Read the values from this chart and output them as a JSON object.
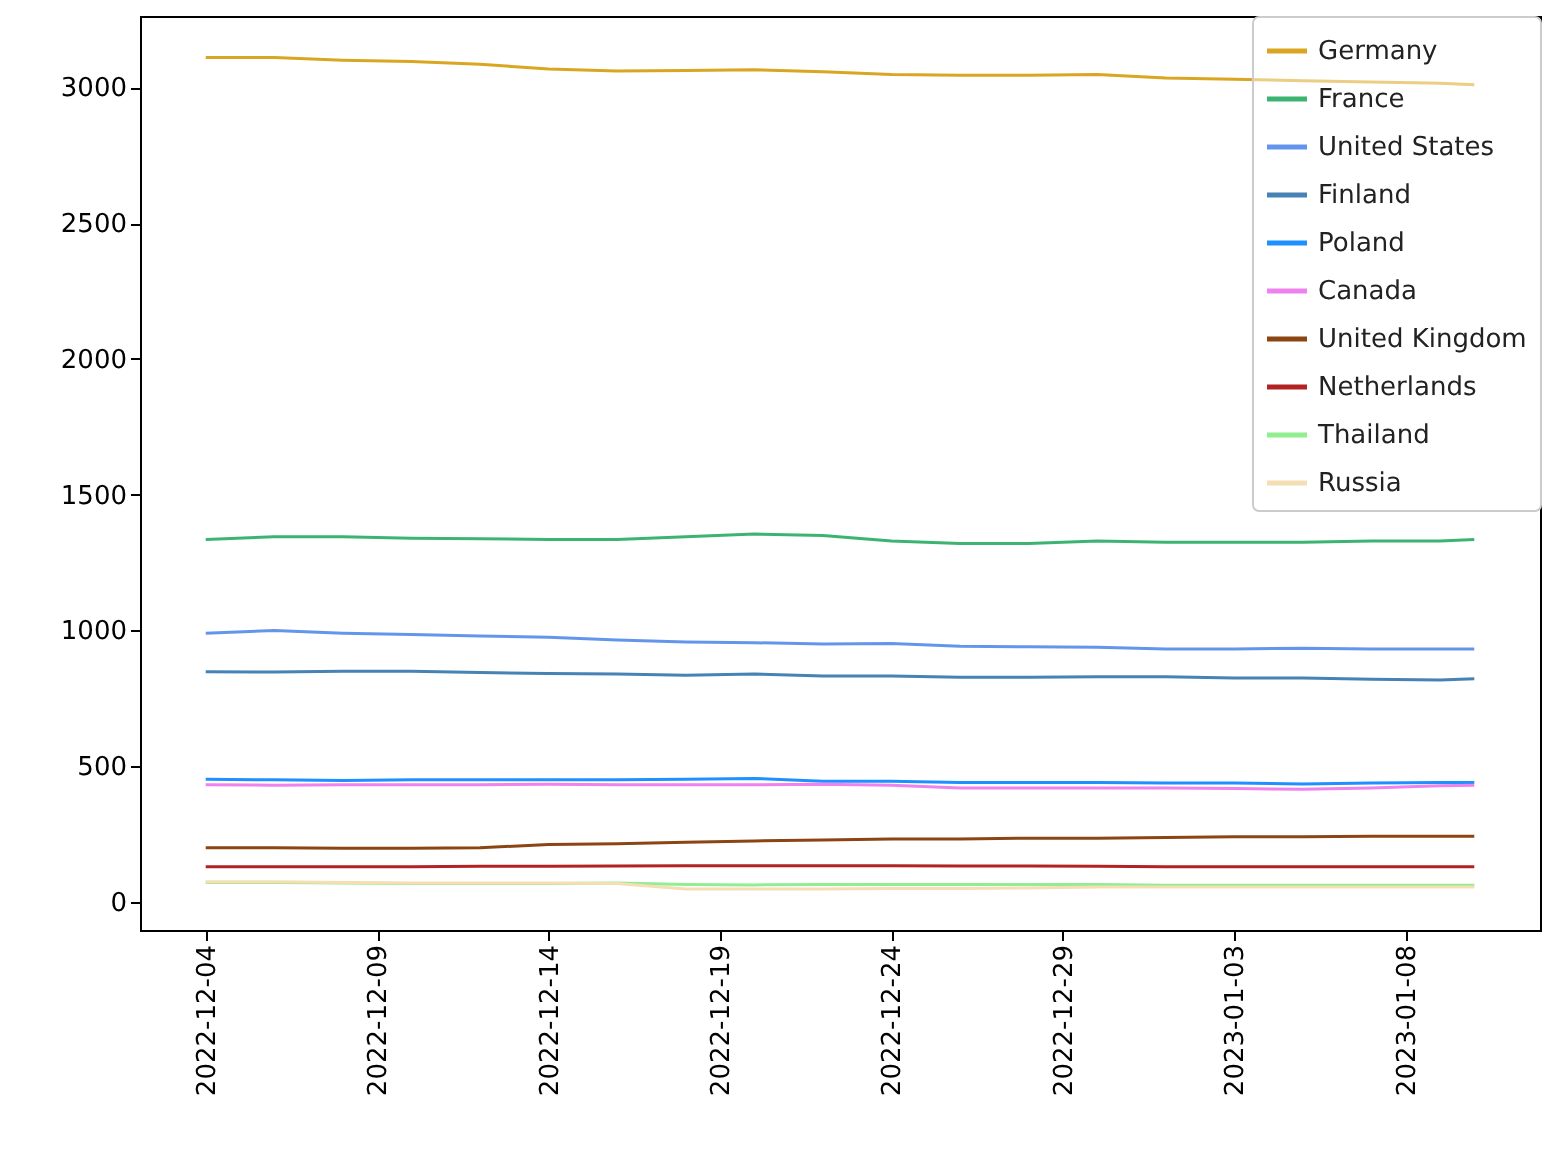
{
  "chart_data": {
    "type": "line",
    "x": [
      "2022-12-04",
      "2022-12-06",
      "2022-12-08",
      "2022-12-10",
      "2022-12-12",
      "2022-12-14",
      "2022-12-16",
      "2022-12-18",
      "2022-12-20",
      "2022-12-22",
      "2022-12-24",
      "2022-12-26",
      "2022-12-28",
      "2022-12-30",
      "2023-01-01",
      "2023-01-03",
      "2023-01-05",
      "2023-01-07",
      "2023-01-09",
      "2023-01-10"
    ],
    "series": [
      {
        "name": "Germany",
        "color": "#daa520",
        "values": [
          3110,
          3110,
          3100,
          3095,
          3085,
          3068,
          3060,
          3062,
          3065,
          3058,
          3048,
          3045,
          3045,
          3048,
          3035,
          3030,
          3025,
          3020,
          3015,
          3010
        ]
      },
      {
        "name": "France",
        "color": "#3cb371",
        "values": [
          1335,
          1345,
          1345,
          1340,
          1338,
          1335,
          1335,
          1345,
          1355,
          1350,
          1330,
          1320,
          1320,
          1330,
          1325,
          1325,
          1325,
          1330,
          1330,
          1335
        ]
      },
      {
        "name": "United States",
        "color": "#6495ed",
        "values": [
          990,
          1000,
          990,
          985,
          980,
          975,
          965,
          958,
          955,
          950,
          952,
          942,
          940,
          938,
          932,
          932,
          935,
          932,
          932,
          932
        ]
      },
      {
        "name": "Finland",
        "color": "#4682b4",
        "values": [
          848,
          847,
          850,
          850,
          845,
          842,
          840,
          835,
          840,
          832,
          832,
          828,
          828,
          830,
          830,
          825,
          825,
          820,
          818,
          822
        ]
      },
      {
        "name": "Poland",
        "color": "#1e90ff",
        "values": [
          452,
          450,
          448,
          450,
          450,
          450,
          450,
          452,
          455,
          445,
          445,
          440,
          440,
          440,
          438,
          438,
          435,
          438,
          440,
          440
        ]
      },
      {
        "name": "Canada",
        "color": "#ee82ee",
        "values": [
          432,
          430,
          432,
          432,
          432,
          434,
          432,
          432,
          432,
          434,
          430,
          420,
          420,
          420,
          420,
          418,
          415,
          420,
          428,
          430
        ]
      },
      {
        "name": "United Kingdom",
        "color": "#8b4513",
        "values": [
          200,
          200,
          198,
          198,
          200,
          212,
          215,
          220,
          225,
          228,
          232,
          232,
          235,
          235,
          238,
          240,
          240,
          242,
          242,
          242
        ]
      },
      {
        "name": "Netherlands",
        "color": "#b22222",
        "values": [
          130,
          130,
          130,
          130,
          132,
          132,
          133,
          134,
          134,
          134,
          134,
          133,
          133,
          132,
          130,
          130,
          130,
          130,
          130,
          130
        ]
      },
      {
        "name": "Thailand",
        "color": "#90ee90",
        "values": [
          72,
          72,
          70,
          68,
          68,
          68,
          70,
          65,
          63,
          65,
          65,
          65,
          65,
          65,
          62,
          62,
          62,
          62,
          62,
          62
        ]
      },
      {
        "name": "Russia",
        "color": "#f5deb3",
        "values": [
          75,
          75,
          72,
          70,
          70,
          70,
          68,
          48,
          48,
          48,
          50,
          50,
          52,
          55,
          55,
          55,
          55,
          55,
          55,
          55
        ]
      }
    ],
    "xlim": [
      "2022-12-02T02:00",
      "2023-01-11T22:00"
    ],
    "xticks": [
      "2022-12-04",
      "2022-12-09",
      "2022-12-14",
      "2022-12-19",
      "2022-12-24",
      "2022-12-29",
      "2023-01-03",
      "2023-01-08"
    ],
    "ylim": [
      -103,
      3263
    ],
    "yticks": [
      0,
      500,
      1000,
      1500,
      2000,
      2500,
      3000
    ],
    "legend": "top right",
    "grid": false
  }
}
